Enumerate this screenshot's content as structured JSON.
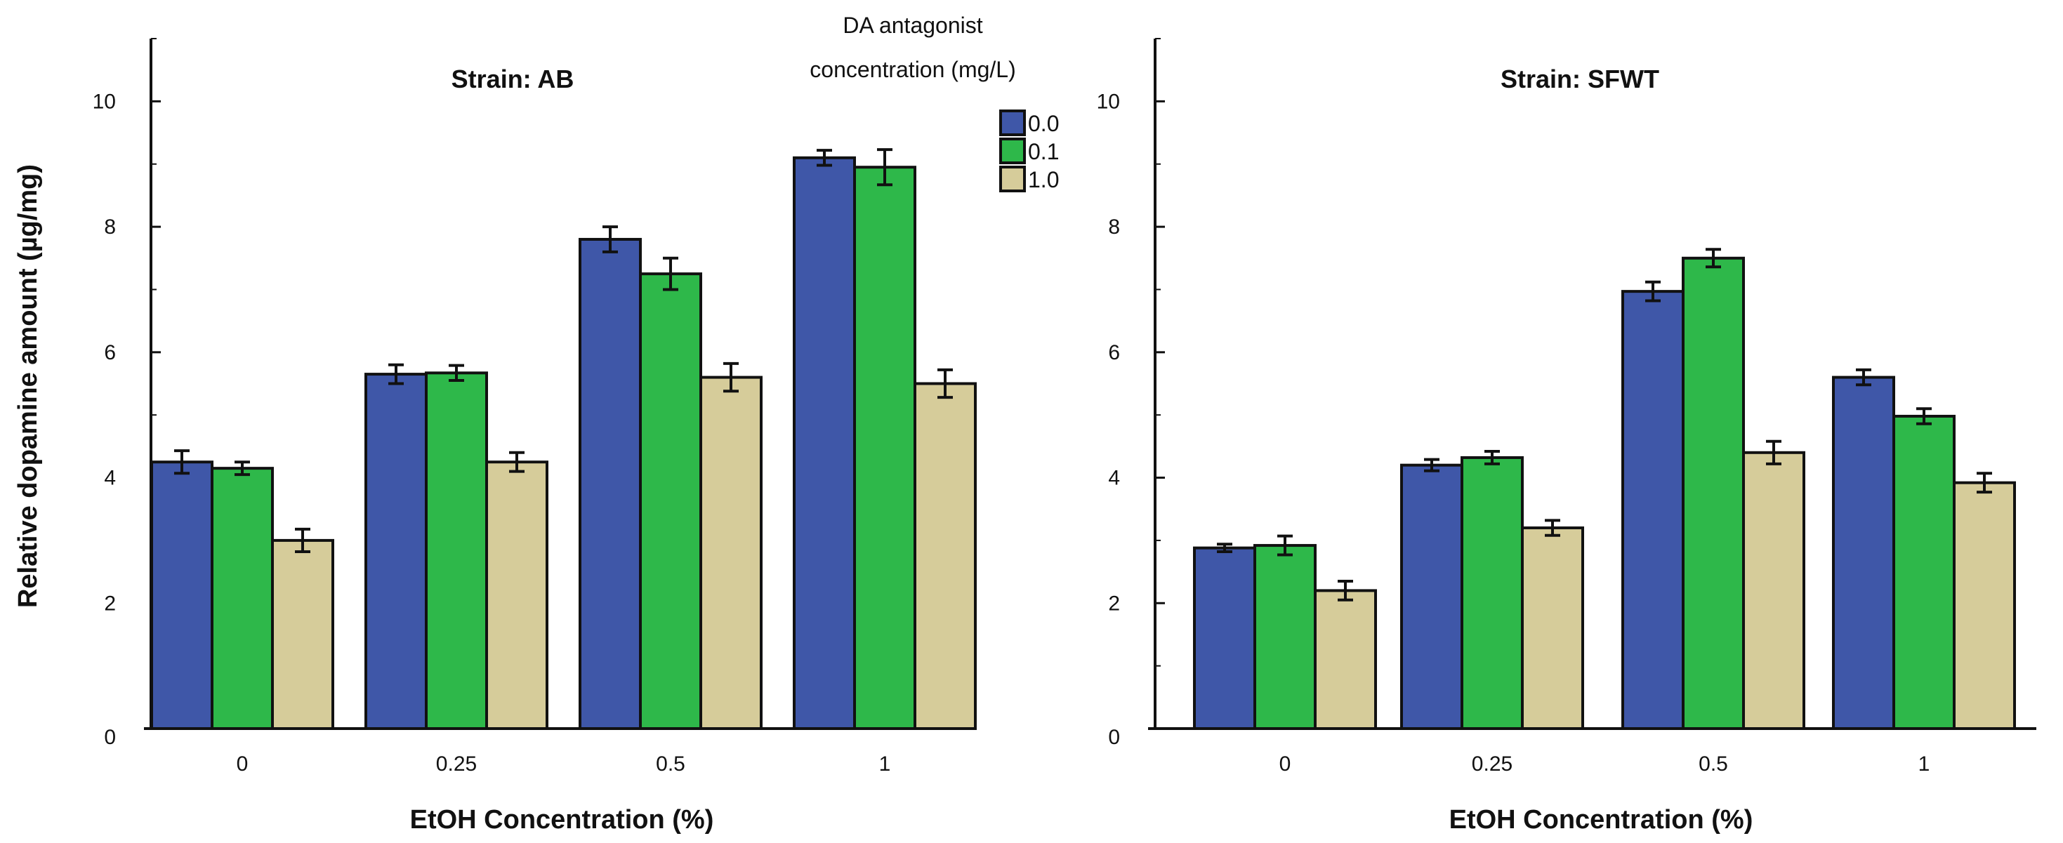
{
  "chart_data": [
    {
      "type": "bar",
      "title": "Strain: AB",
      "xlabel": "EtOH Concentration (%)",
      "ylabel": "Relative dopamine amount (µg/mg)",
      "ylim": [
        0,
        11
      ],
      "yticks": [
        "0",
        "2",
        "4",
        "6",
        "8",
        "10"
      ],
      "categories": [
        "0",
        "0.25",
        "0.5",
        "1"
      ],
      "series": [
        {
          "name": "0.0",
          "color": "#3f57a8",
          "values": [
            4.25,
            5.65,
            7.8,
            9.1
          ],
          "errors": [
            0.18,
            0.15,
            0.2,
            0.12
          ]
        },
        {
          "name": "0.1",
          "color": "#2eb84a",
          "values": [
            4.15,
            5.67,
            7.25,
            8.95
          ],
          "errors": [
            0.1,
            0.12,
            0.25,
            0.28
          ]
        },
        {
          "name": "1.0",
          "color": "#d6cc9a",
          "values": [
            3.0,
            4.25,
            5.6,
            5.5
          ],
          "errors": [
            0.18,
            0.15,
            0.22,
            0.22
          ]
        }
      ],
      "legend": {
        "title_line1": "DA antagonist",
        "title_line2": "concentration   (mg/L)",
        "position": "top-right"
      }
    },
    {
      "type": "bar",
      "title": "Strain: SFWT",
      "xlabel": "EtOH Concentration (%)",
      "ylabel": "",
      "ylim": [
        0,
        11
      ],
      "yticks": [
        "0",
        "2",
        "4",
        "6",
        "8",
        "10"
      ],
      "categories": [
        "0",
        "0.25",
        "0.5",
        "1"
      ],
      "series": [
        {
          "name": "0.0",
          "color": "#3f57a8",
          "values": [
            2.88,
            4.2,
            6.97,
            5.6
          ],
          "errors": [
            0.06,
            0.09,
            0.15,
            0.12
          ]
        },
        {
          "name": "0.1",
          "color": "#2eb84a",
          "values": [
            2.92,
            4.32,
            7.5,
            4.98
          ],
          "errors": [
            0.15,
            0.1,
            0.14,
            0.12
          ]
        },
        {
          "name": "1.0",
          "color": "#d6cc9a",
          "values": [
            2.2,
            3.2,
            4.4,
            3.92
          ],
          "errors": [
            0.15,
            0.12,
            0.18,
            0.15
          ]
        }
      ]
    }
  ]
}
